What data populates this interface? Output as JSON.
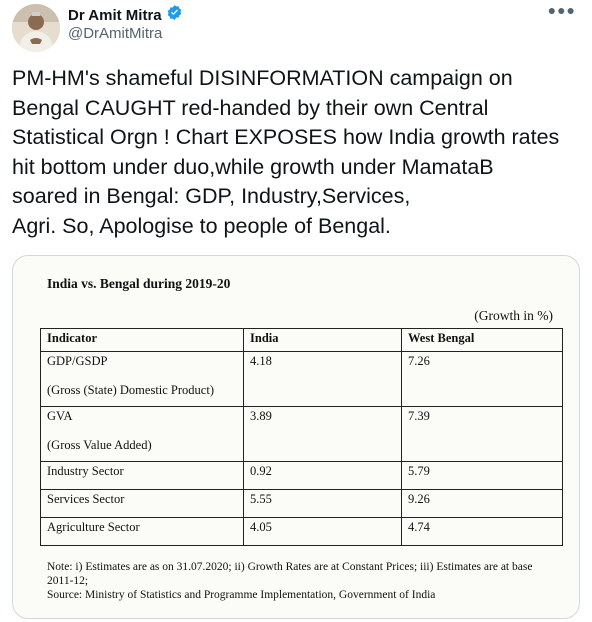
{
  "author": {
    "name": "Dr Amit Mitra",
    "handle": "@DrAmitMitra"
  },
  "tweet": {
    "text": "PM-HM's shameful DISINFORMATION campaign on\nBengal CAUGHT red-handed by their own Central\nStatistical Orgn ! Chart EXPOSES how India growth rates\nhit bottom under duo,while growth  under MamataB\nsoared in Bengal: GDP, Industry,Services,\nAgri. So, Apologise to people of Bengal."
  },
  "card": {
    "title": "India vs. Bengal during 2019-20",
    "unit_note": "(Growth in %)",
    "headers": [
      "Indicator",
      "India",
      "West Bengal"
    ],
    "rows": [
      {
        "indicator": "GDP/GSDP",
        "sub": "(Gross (State) Domestic Product)",
        "india": "4.18",
        "wb": "7.26"
      },
      {
        "indicator": "GVA",
        "sub": "(Gross Value Added)",
        "india": "3.89",
        "wb": "7.39"
      },
      {
        "indicator": "Industry Sector",
        "india": "0.92",
        "wb": "5.79"
      },
      {
        "indicator": "Services Sector",
        "india": "5.55",
        "wb": "9.26"
      },
      {
        "indicator": "Agriculture Sector",
        "india": "4.05",
        "wb": "4.74"
      }
    ],
    "note": "Note: i) Estimates are as on 31.07.2020; ii) Growth Rates are at Constant Prices; iii) Estimates are at base 2011-12;",
    "source": "Source: Ministry of Statistics and Programme Implementation, Government of India"
  },
  "colors": {
    "verified_badge": "#1d9bf0",
    "secondary_text": "#536471",
    "card_border": "#cfd9de"
  },
  "icons": [
    "verified-badge-icon",
    "more-options-icon"
  ]
}
